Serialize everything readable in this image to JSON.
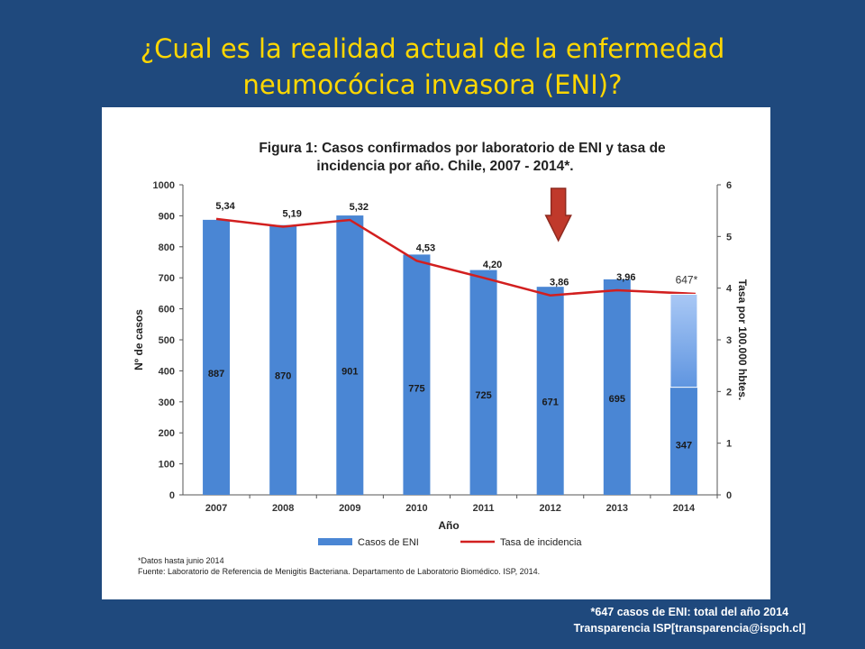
{
  "slide": {
    "title_line1": "¿Cual es la realidad actual de la enfermedad",
    "title_line2": "neumocócica invasora (ENI)?",
    "footnote_line1": "*647 casos de ENI:  total del año 2014",
    "footnote_line2": "Transparencia  ISP[transparencia@ispch.cl]"
  },
  "colors": {
    "background": "#1f497d",
    "title": "#ffd700",
    "bars": "#4a86d4",
    "line": "#d21f1f",
    "projected_bar": "#5f95e0",
    "down_arrow": "#c0392b"
  },
  "chart_data": {
    "type": "bar",
    "title_line1": "Figura 1: Casos confirmados por laboratorio de ENI y tasa de",
    "title_line2": "incidencia por año. Chile, 2007 - 2014*.",
    "xlabel": "Año",
    "ylabel": "Nº de casos",
    "ylabel_right": "Tasa por 100.000 hbtes.",
    "categories": [
      "2007",
      "2008",
      "2009",
      "2010",
      "2011",
      "2012",
      "2013",
      "2014"
    ],
    "ylim": [
      0,
      1000
    ],
    "yticks": [
      0,
      100,
      200,
      300,
      400,
      500,
      600,
      700,
      800,
      900,
      1000
    ],
    "ylim_right": [
      0,
      6
    ],
    "yticks_right": [
      0,
      1,
      2,
      3,
      4,
      5,
      6
    ],
    "grid": false,
    "legend_position": "bottom",
    "series": [
      {
        "name": "Casos de ENI",
        "kind": "bar",
        "axis": "left",
        "values": [
          887,
          870,
          901,
          775,
          725,
          671,
          695,
          347
        ],
        "labels": [
          "887",
          "870",
          "901",
          "775",
          "725",
          "671",
          "695",
          "347"
        ]
      },
      {
        "name": "Tasa de incidencia",
        "kind": "line",
        "axis": "right",
        "values": [
          5.34,
          5.19,
          5.32,
          4.53,
          4.2,
          3.86,
          3.96,
          3.89
        ],
        "labels": [
          "5,34",
          "5,19",
          "5,32",
          "4,53",
          "4,20",
          "3,86",
          "3,96",
          ""
        ]
      }
    ],
    "overlay": {
      "category": "2014",
      "from": 347,
      "to": 647,
      "label": "647*"
    },
    "arrow_category": "2012",
    "notes": [
      "*Datos hasta junio 2014",
      "Fuente: Laboratorio de Referencia de Menigitis Bacteriana. Departamento de Laboratorio Biomédico. ISP, 2014."
    ]
  }
}
